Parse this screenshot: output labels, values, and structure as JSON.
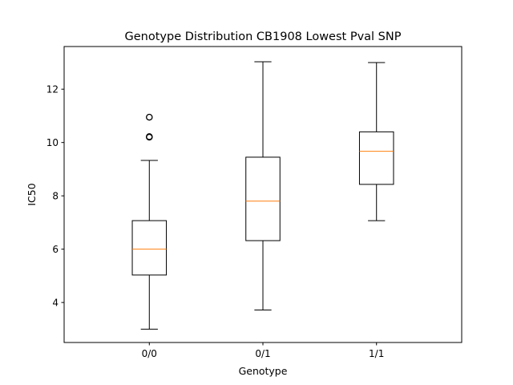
{
  "chart_data": {
    "type": "boxplot",
    "title": "Genotype Distribution CB1908 Lowest Pval SNP",
    "xlabel": "Genotype",
    "ylabel": "IC50",
    "categories": [
      "0/0",
      "0/1",
      "1/1"
    ],
    "ylim": [
      2.5,
      13.6
    ],
    "yticks": [
      4,
      6,
      8,
      10,
      12
    ],
    "grid": false,
    "boxes": [
      {
        "category": "0/0",
        "whisker_low": 3.0,
        "q1": 5.03,
        "median": 6.0,
        "q3": 7.07,
        "whisker_high": 9.33,
        "outliers": [
          10.2,
          10.22,
          10.95
        ]
      },
      {
        "category": "0/1",
        "whisker_low": 3.72,
        "q1": 6.32,
        "median": 7.8,
        "q3": 9.45,
        "whisker_high": 13.03,
        "outliers": []
      },
      {
        "category": "1/1",
        "whisker_low": 7.07,
        "q1": 8.43,
        "median": 9.67,
        "q3": 10.4,
        "whisker_high": 13.0,
        "outliers": []
      }
    ],
    "colors": {
      "box": "#000000",
      "median": "#ff7f0e",
      "outlier": "#000000",
      "axes": "#000000"
    }
  }
}
